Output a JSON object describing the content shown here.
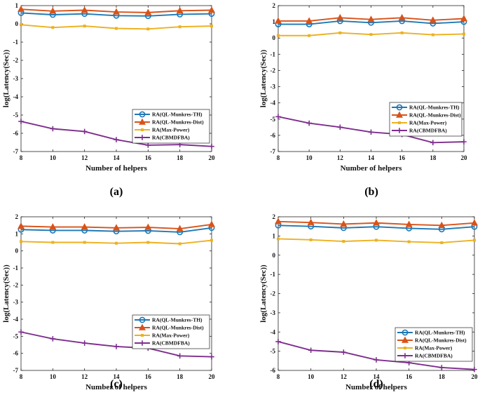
{
  "colors": {
    "ql_th": "#1f78b4",
    "ql_dist": "#d8531a",
    "max_power": "#edb120",
    "cbmdfba": "#7e2f8e",
    "axis": "#262626"
  },
  "chart_data": [
    {
      "panel_label": "(a)",
      "type": "line",
      "xlabel": "Number of helpers",
      "ylabel": "log(Latency(Sec))",
      "x": [
        8,
        10,
        12,
        14,
        16,
        18,
        20
      ],
      "xticks": [
        "8",
        "10",
        "12",
        "14",
        "16",
        "18",
        "20"
      ],
      "ylim": [
        -7,
        1
      ],
      "yticks": [
        "-7",
        "-6",
        "-5",
        "-4",
        "-3",
        "-2",
        "-1",
        "0",
        "1"
      ],
      "legend_position": "lower-right",
      "series": [
        {
          "name": "RA(QL-Munkres-TH)",
          "marker": "circle",
          "values": [
            0.6,
            0.5,
            0.55,
            0.45,
            0.43,
            0.52,
            0.55
          ]
        },
        {
          "name": "RA(QL-Munkres-Dist)",
          "marker": "triangle",
          "values": [
            0.8,
            0.7,
            0.75,
            0.65,
            0.62,
            0.72,
            0.75
          ]
        },
        {
          "name": "RA(Max-Power)",
          "marker": "square",
          "values": [
            -0.05,
            -0.2,
            -0.12,
            -0.25,
            -0.28,
            -0.16,
            -0.12
          ]
        },
        {
          "name": "RA(CBMDFBA)",
          "marker": "plus",
          "values": [
            -5.35,
            -5.75,
            -5.9,
            -6.35,
            -6.65,
            -6.62,
            -6.72
          ]
        }
      ]
    },
    {
      "panel_label": "(b)",
      "type": "line",
      "xlabel": "Number of helpers",
      "ylabel": "log(Latency(Sec))",
      "x": [
        8,
        10,
        12,
        14,
        16,
        18,
        20
      ],
      "xticks": [
        "8",
        "10",
        "12",
        "14",
        "16",
        "18",
        "20"
      ],
      "ylim": [
        -7,
        2
      ],
      "yticks": [
        "-7",
        "-6",
        "-5",
        "-4",
        "-3",
        "-2",
        "-1",
        "0",
        "1",
        "2"
      ],
      "legend_position": "lower-right",
      "series": [
        {
          "name": "RA(QL-Munkres-TH)",
          "marker": "circle",
          "values": [
            0.85,
            0.85,
            1.05,
            0.95,
            1.05,
            0.9,
            1.0
          ]
        },
        {
          "name": "RA(QL-Munkres-Dist)",
          "marker": "triangle",
          "values": [
            1.05,
            1.05,
            1.25,
            1.15,
            1.25,
            1.1,
            1.2
          ]
        },
        {
          "name": "RA(Max-Power)",
          "marker": "square",
          "values": [
            0.15,
            0.15,
            0.32,
            0.22,
            0.32,
            0.2,
            0.25
          ]
        },
        {
          "name": "RA(CBMDFBA)",
          "marker": "plus",
          "values": [
            -4.85,
            -5.25,
            -5.5,
            -5.8,
            -5.95,
            -6.45,
            -6.4
          ]
        }
      ]
    },
    {
      "panel_label": "(c)",
      "type": "line",
      "xlabel": "Number of helpers",
      "ylabel": "log(Latency(Sec))",
      "x": [
        8,
        10,
        12,
        14,
        16,
        18,
        20
      ],
      "xticks": [
        "8",
        "10",
        "12",
        "14",
        "16",
        "18",
        "20"
      ],
      "ylim": [
        -7,
        2
      ],
      "yticks": [
        "-7",
        "-6",
        "-5",
        "-4",
        "-3",
        "-2",
        "-1",
        "0",
        "1",
        "2"
      ],
      "legend_position": "lower-right",
      "series": [
        {
          "name": "RA(QL-Munkres-TH)",
          "marker": "circle",
          "values": [
            1.25,
            1.2,
            1.2,
            1.15,
            1.18,
            1.1,
            1.35
          ]
        },
        {
          "name": "RA(QL-Munkres-Dist)",
          "marker": "triangle",
          "values": [
            1.45,
            1.4,
            1.4,
            1.35,
            1.38,
            1.3,
            1.55
          ]
        },
        {
          "name": "RA(Max-Power)",
          "marker": "square",
          "values": [
            0.55,
            0.5,
            0.5,
            0.45,
            0.5,
            0.42,
            0.62
          ]
        },
        {
          "name": "RA(CBMDFBA)",
          "marker": "plus",
          "values": [
            -4.75,
            -5.15,
            -5.4,
            -5.6,
            -5.7,
            -6.15,
            -6.2
          ]
        }
      ]
    },
    {
      "panel_label": "(d)",
      "type": "line",
      "xlabel": "Number of helpers",
      "ylabel": "log(Latency(Sec))",
      "x": [
        8,
        10,
        12,
        14,
        16,
        18,
        20
      ],
      "xticks": [
        "8",
        "10",
        "12",
        "14",
        "16",
        "18",
        "20"
      ],
      "ylim": [
        -6,
        2
      ],
      "yticks": [
        "-6",
        "-5",
        "-4",
        "-3",
        "-2",
        "-1",
        "0",
        "1",
        "2"
      ],
      "legend_position": "lower-right",
      "series": [
        {
          "name": "RA(QL-Munkres-TH)",
          "marker": "circle",
          "values": [
            1.55,
            1.5,
            1.42,
            1.48,
            1.4,
            1.35,
            1.48
          ]
        },
        {
          "name": "RA(QL-Munkres-Dist)",
          "marker": "triangle",
          "values": [
            1.75,
            1.7,
            1.62,
            1.68,
            1.6,
            1.55,
            1.68
          ]
        },
        {
          "name": "RA(Max-Power)",
          "marker": "square",
          "values": [
            0.85,
            0.8,
            0.72,
            0.78,
            0.7,
            0.65,
            0.78
          ]
        },
        {
          "name": "RA(CBMDFBA)",
          "marker": "plus",
          "values": [
            -4.5,
            -4.95,
            -5.05,
            -5.45,
            -5.6,
            -5.85,
            -5.95
          ]
        }
      ]
    }
  ]
}
